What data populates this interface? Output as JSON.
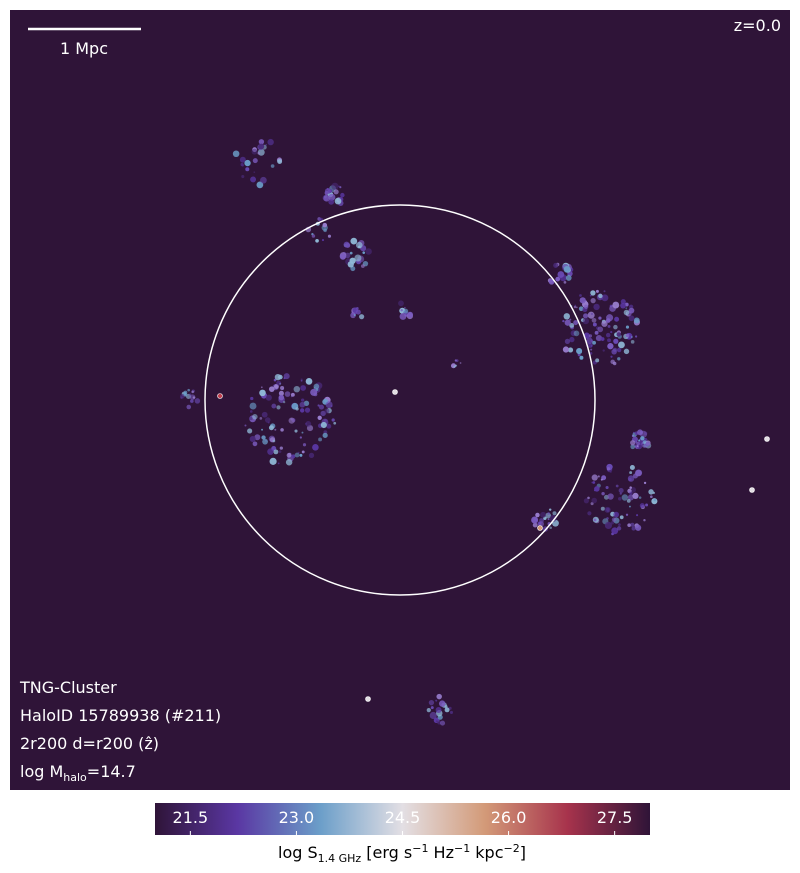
{
  "chart_data": {
    "type": "image",
    "scale_bar_label": "1 Mpc",
    "redshift": "z=0.0",
    "annotations": [
      "TNG-Cluster",
      "HaloID 15789938 (#211)",
      "2r200 d=r200 (ẑ)"
    ],
    "mass_label": {
      "prefix": "log M",
      "subscript": "halo",
      "suffix": "=14.7"
    },
    "colorbar": {
      "clim": [
        21,
        28
      ],
      "ticks": [
        21.5,
        {
          "value": 23,
          "label": "23.0"
        },
        24.5,
        {
          "value": 26,
          "label": "26.0"
        },
        27.5
      ],
      "colors": [
        "#2f1438",
        "#5a37a3",
        "#6b9ec9",
        "#e3dfe4",
        "#d39a78",
        "#a7334c",
        "#2f1438"
      ],
      "label": {
        "parts": [
          "log S",
          "1.4 GHz",
          " [erg s",
          "−1",
          " Hz",
          "−1",
          " kpc",
          "−2",
          "]"
        ]
      }
    }
  }
}
